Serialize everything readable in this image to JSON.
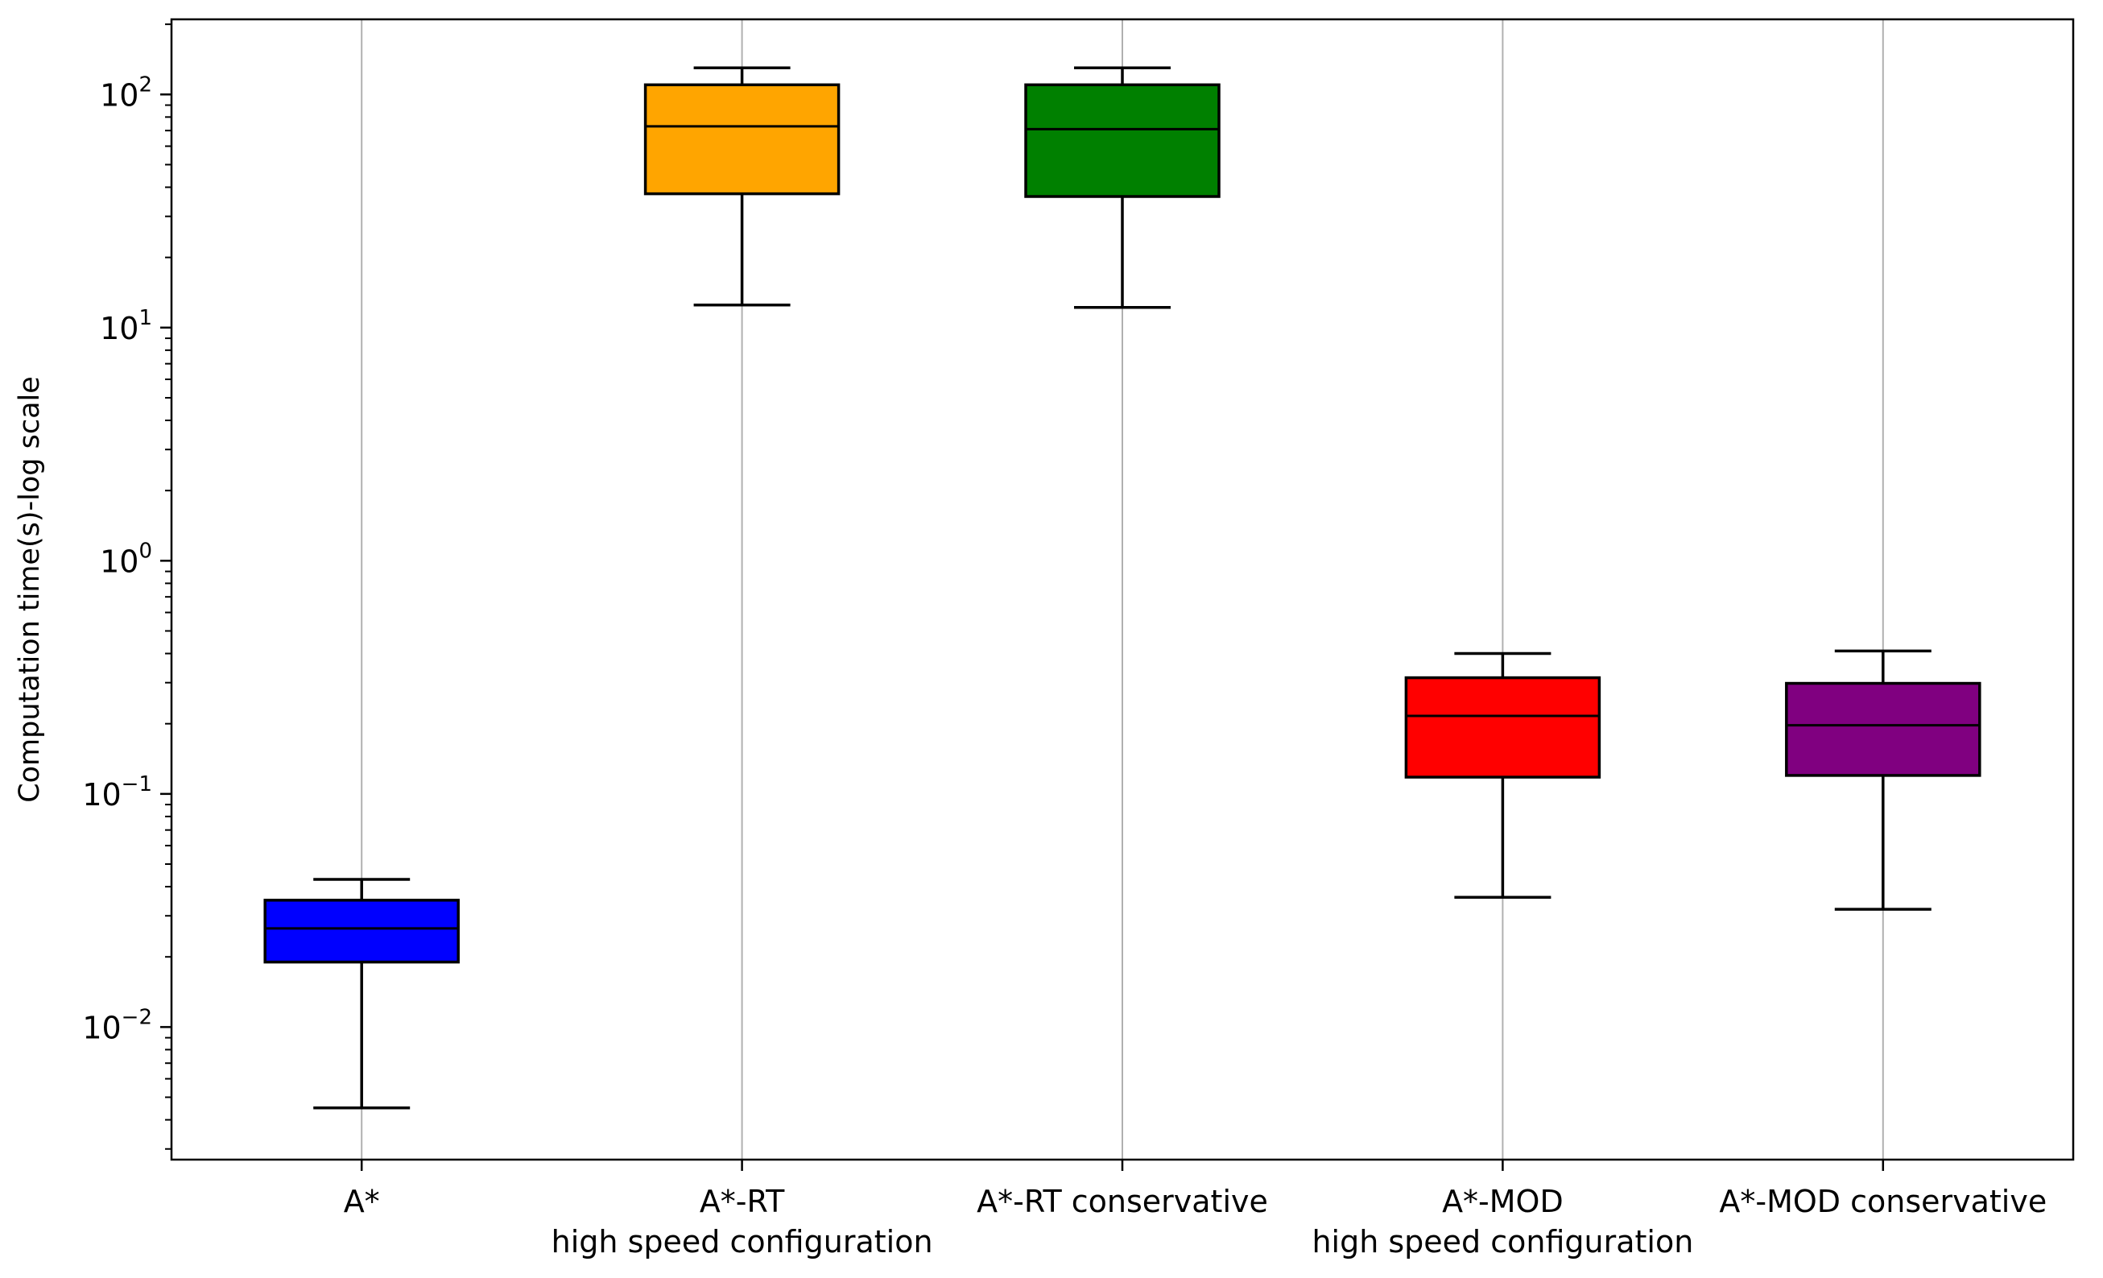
{
  "chart_data": {
    "type": "box",
    "ylabel": "Computation time(s)-log scale",
    "yscale": "log",
    "ylim": [
      0.0027,
      210
    ],
    "yticks": [
      {
        "value": 0.01,
        "base": "10",
        "exp": "−2"
      },
      {
        "value": 0.1,
        "base": "10",
        "exp": "−1"
      },
      {
        "value": 1,
        "base": "10",
        "exp": "0"
      },
      {
        "value": 10,
        "base": "10",
        "exp": "1"
      },
      {
        "value": 100,
        "base": "10",
        "exp": "2"
      }
    ],
    "grid": "x-only",
    "categories": [
      {
        "line1": "A*",
        "line2": ""
      },
      {
        "line1": "A*-RT",
        "line2": "high speed configuration"
      },
      {
        "line1": "A*-RT conservative",
        "line2": ""
      },
      {
        "line1": "A*-MOD",
        "line2": "high speed configuration"
      },
      {
        "line1": "A*-MOD conservative",
        "line2": ""
      }
    ],
    "boxes": [
      {
        "whislo": 0.0045,
        "q1": 0.019,
        "med": 0.0265,
        "q3": 0.035,
        "whishi": 0.043,
        "color": "#0000ff"
      },
      {
        "whislo": 12.5,
        "q1": 37.5,
        "med": 73,
        "q3": 110,
        "whishi": 130,
        "color": "#ffa500"
      },
      {
        "whislo": 12.2,
        "q1": 36.5,
        "med": 71,
        "q3": 110,
        "whishi": 130,
        "color": "#008000"
      },
      {
        "whislo": 0.036,
        "q1": 0.118,
        "med": 0.216,
        "q3": 0.315,
        "whishi": 0.4,
        "color": "#ff0000"
      },
      {
        "whislo": 0.032,
        "q1": 0.12,
        "med": 0.197,
        "q3": 0.298,
        "whishi": 0.41,
        "color": "#800080"
      }
    ]
  }
}
